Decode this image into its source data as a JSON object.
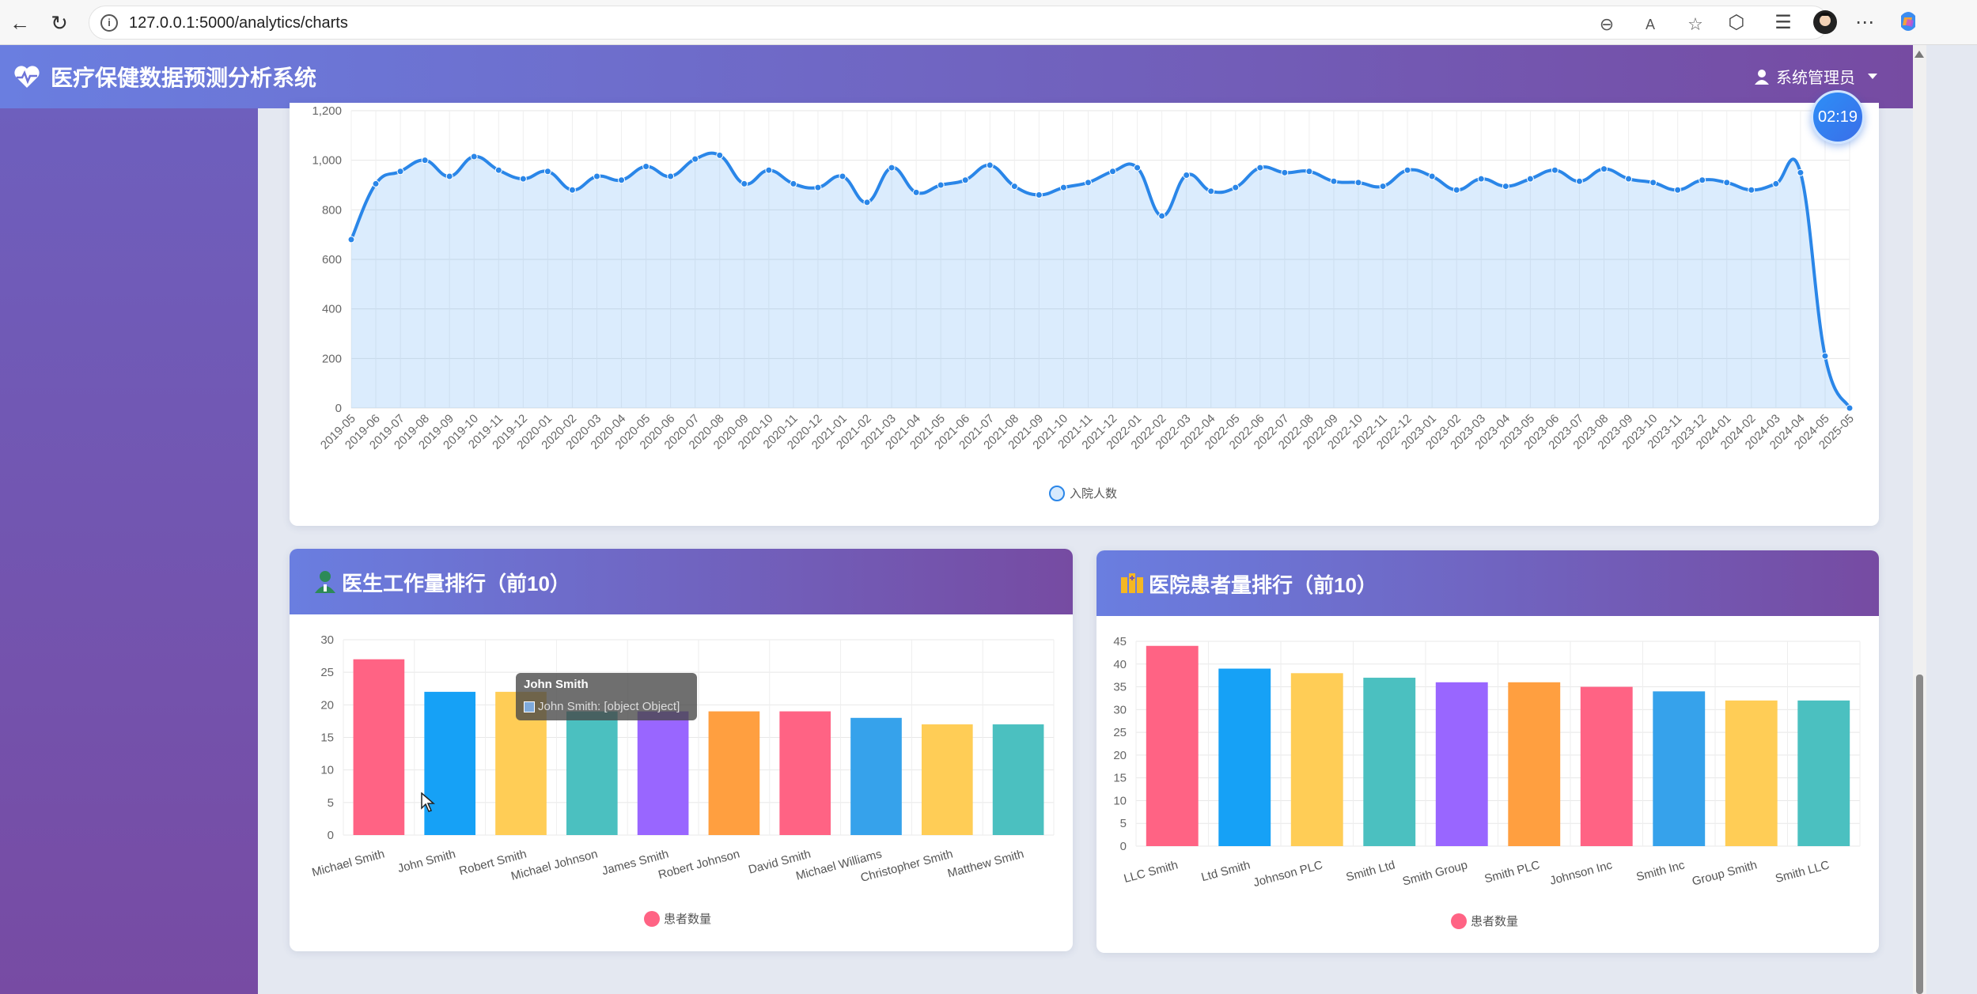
{
  "browser": {
    "url": "127.0.0.1:5000/analytics/charts",
    "icons": [
      "back-arrow-icon",
      "reload-icon",
      "info-icon",
      "zoom-out-icon",
      "read-aloud-icon",
      "favorite-star-icon",
      "extensions-icon",
      "favorites-icon",
      "profile-avatar-icon",
      "more-icon",
      "copilot-icon"
    ]
  },
  "app": {
    "title": "医疗保健数据预测分析系统",
    "user": "系统管理员",
    "timer": "02:19"
  },
  "colors": {
    "header_start": "#6a7ee0",
    "header_end": "#764ba2",
    "line": "#2a86e8",
    "palette": [
      "#ff6384",
      "#16a1f6",
      "#ffcd56",
      "#4bc0c0",
      "#9966ff",
      "#ff9f40",
      "#ff6384",
      "#36a2eb",
      "#ffcd56",
      "#4bc0c0"
    ]
  },
  "admissions_chart": {
    "type": "line",
    "legend": "入院人数",
    "ylim": [
      0,
      1200
    ],
    "yticks": [
      "0",
      "200",
      "400",
      "600",
      "800",
      "1,000",
      "1,200"
    ],
    "chart_data": {
      "type": "line",
      "x": [
        "2019-05",
        "2019-06",
        "2019-07",
        "2019-08",
        "2019-09",
        "2019-10",
        "2019-11",
        "2019-12",
        "2020-01",
        "2020-02",
        "2020-03",
        "2020-04",
        "2020-05",
        "2020-06",
        "2020-07",
        "2020-08",
        "2020-09",
        "2020-10",
        "2020-11",
        "2020-12",
        "2021-01",
        "2021-02",
        "2021-03",
        "2021-04",
        "2021-05",
        "2021-06",
        "2021-07",
        "2021-08",
        "2021-09",
        "2021-10",
        "2021-11",
        "2021-12",
        "2022-01",
        "2022-02",
        "2022-03",
        "2022-04",
        "2022-05",
        "2022-06",
        "2022-07",
        "2022-08",
        "2022-09",
        "2022-10",
        "2022-11",
        "2022-12",
        "2023-01",
        "2023-02",
        "2023-03",
        "2023-04",
        "2023-05",
        "2023-06",
        "2023-07",
        "2023-08",
        "2023-09",
        "2023-10",
        "2023-11",
        "2023-12",
        "2024-01",
        "2024-02",
        "2024-03",
        "2024-04",
        "2024-05",
        "2025-05"
      ],
      "series": [
        {
          "name": "入院人数",
          "values": [
            680,
            905,
            955,
            1000,
            935,
            1015,
            960,
            925,
            955,
            880,
            935,
            920,
            975,
            935,
            1005,
            1020,
            905,
            960,
            905,
            890,
            935,
            830,
            970,
            870,
            900,
            920,
            980,
            895,
            860,
            890,
            910,
            955,
            970,
            775,
            940,
            875,
            890,
            970,
            950,
            955,
            915,
            910,
            895,
            960,
            935,
            880,
            925,
            895,
            925,
            960,
            915,
            965,
            925,
            910,
            880,
            920,
            910,
            880,
            905,
            950,
            210,
            0
          ]
        }
      ],
      "ylim": [
        0,
        1200
      ]
    }
  },
  "doctor_chart": {
    "title": "医生工作量排行（前10）",
    "legend": "患者数量",
    "ylim": [
      0,
      30
    ],
    "yticks": [
      "0",
      "5",
      "10",
      "15",
      "20",
      "25",
      "30"
    ],
    "tooltip": {
      "title": "John Smith",
      "body": "John Smith: [object Object]"
    },
    "chart_data": {
      "type": "bar",
      "categories": [
        "Michael Smith",
        "John Smith",
        "Robert Smith",
        "Michael Johnson",
        "James Smith",
        "Robert Johnson",
        "David Smith",
        "Michael Williams",
        "Christopher Smith",
        "Matthew Smith"
      ],
      "values": [
        27,
        22,
        22,
        19,
        19,
        19,
        19,
        18,
        17,
        17
      ],
      "ylim": [
        0,
        30
      ]
    }
  },
  "hospital_chart": {
    "title": "医院患者量排行（前10）",
    "legend": "患者数量",
    "ylim": [
      0,
      45
    ],
    "yticks": [
      "0",
      "5",
      "10",
      "15",
      "20",
      "25",
      "30",
      "35",
      "40",
      "45"
    ],
    "chart_data": {
      "type": "bar",
      "categories": [
        "LLC Smith",
        "Ltd Smith",
        "Johnson PLC",
        "Smith Ltd",
        "Smith Group",
        "Smith PLC",
        "Johnson Inc",
        "Smith Inc",
        "Group Smith",
        "Smith LLC"
      ],
      "values": [
        44,
        39,
        38,
        37,
        36,
        36,
        35,
        34,
        32,
        32
      ],
      "ylim": [
        0,
        45
      ]
    }
  }
}
